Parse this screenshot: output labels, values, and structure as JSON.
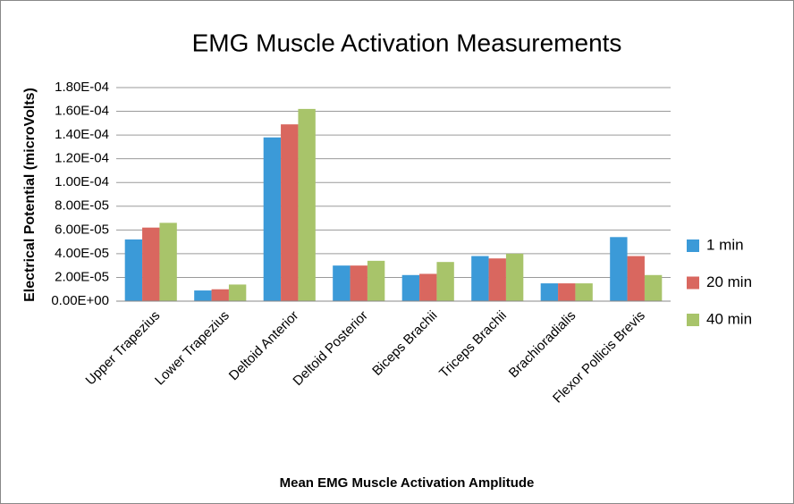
{
  "chart_data": {
    "type": "bar",
    "title": "EMG Muscle Activation Measurements",
    "x_label": "Mean EMG Muscle Activation Amplitude",
    "y_label": "Electrical Potential (microVolts)",
    "categories": [
      "Upper Trapezius",
      "Lower Trapezius",
      "Deltoid Anterior",
      "Deltoid Posterior",
      "Biceps Brachii",
      "Triceps Brachii",
      "Brachioradialis",
      "Flexor Pollicis Brevis"
    ],
    "series": [
      {
        "name": "1 min",
        "color": "#3b9ad8",
        "values": [
          5.2e-05,
          9e-06,
          0.000138,
          3e-05,
          2.2e-05,
          3.8e-05,
          1.5e-05,
          5.4e-05
        ]
      },
      {
        "name": "20 min",
        "color": "#d9675f",
        "values": [
          6.2e-05,
          1e-05,
          0.000149,
          3e-05,
          2.3e-05,
          3.6e-05,
          1.5e-05,
          3.8e-05
        ]
      },
      {
        "name": "40 min",
        "color": "#a8c46a",
        "values": [
          6.6e-05,
          1.4e-05,
          0.000162,
          3.4e-05,
          3.3e-05,
          4e-05,
          1.5e-05,
          2.2e-05
        ]
      }
    ],
    "ylim": [
      0,
      0.00018
    ],
    "yticks": [
      {
        "value": 0,
        "label": "0.00E+00"
      },
      {
        "value": 2e-05,
        "label": "2.00E-05"
      },
      {
        "value": 4e-05,
        "label": "4.00E-05"
      },
      {
        "value": 6e-05,
        "label": "6.00E-05"
      },
      {
        "value": 8e-05,
        "label": "8.00E-05"
      },
      {
        "value": 0.0001,
        "label": "1.00E-04"
      },
      {
        "value": 0.00012,
        "label": "1.20E-04"
      },
      {
        "value": 0.00014,
        "label": "1.40E-04"
      },
      {
        "value": 0.00016,
        "label": "1.60E-04"
      },
      {
        "value": 0.00018,
        "label": "1.80E-04"
      }
    ],
    "grid": true,
    "legend": "right"
  }
}
